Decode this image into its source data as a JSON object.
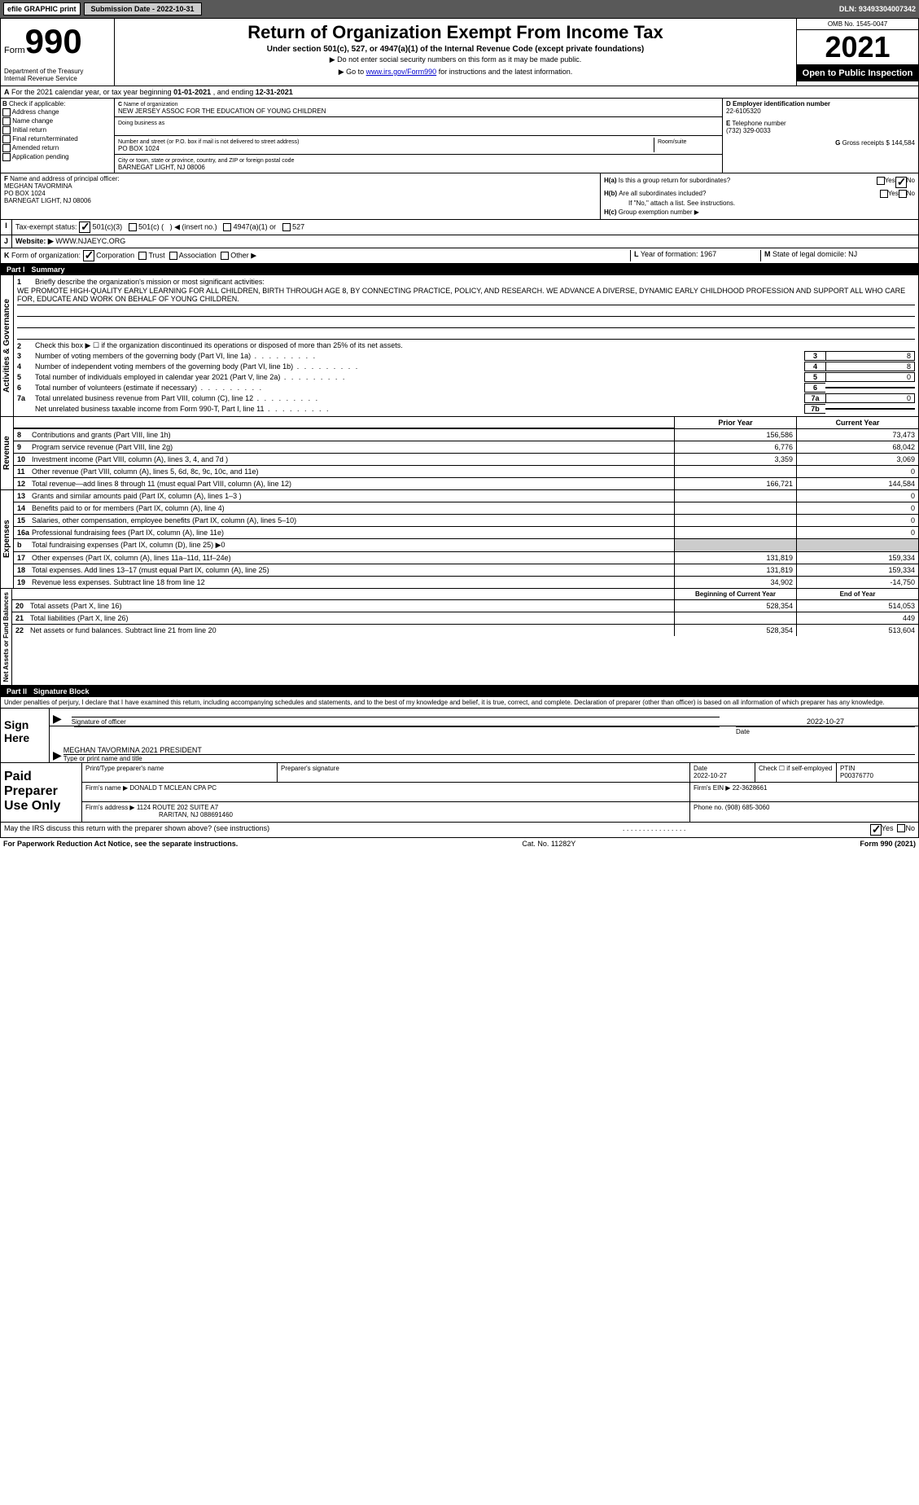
{
  "topbar": {
    "efile": "efile GRAPHIC print",
    "submission_btn": "Submission Date - 2022-10-31",
    "dln": "DLN: 93493304007342"
  },
  "header": {
    "form_word": "Form",
    "form_no": "990",
    "title": "Return of Organization Exempt From Income Tax",
    "sub1": "Under section 501(c), 527, or 4947(a)(1) of the Internal Revenue Code (except private foundations)",
    "sub2": "▶ Do not enter social security numbers on this form as it may be made public.",
    "sub3_pre": "▶ Go to ",
    "sub3_link": "www.irs.gov/Form990",
    "sub3_post": " for instructions and the latest information.",
    "dept": "Department of the Treasury",
    "irs": "Internal Revenue Service",
    "omb": "OMB No. 1545-0047",
    "year": "2021",
    "open": "Open to Public Inspection"
  },
  "A": {
    "text_pre": "For the 2021 calendar year, or tax year beginning ",
    "begin": "01-01-2021",
    "text_mid": " , and ending ",
    "end": "12-31-2021"
  },
  "B": {
    "label": "Check if applicable:",
    "opts": [
      "Address change",
      "Name change",
      "Initial return",
      "Final return/terminated",
      "Amended return",
      "Application pending"
    ]
  },
  "C": {
    "name_label": "Name of organization",
    "name": "NEW JERSEY ASSOC FOR THE EDUCATION OF YOUNG CHILDREN",
    "dba_label": "Doing business as",
    "addr_label": "Number and street (or P.O. box if mail is not delivered to street address)",
    "room_label": "Room/suite",
    "addr": "PO BOX 1024",
    "city_label": "City or town, state or province, country, and ZIP or foreign postal code",
    "city": "BARNEGAT LIGHT, NJ  08006"
  },
  "D": {
    "ein_label": "Employer identification number",
    "ein": "22-6105320",
    "tel_label": "Telephone number",
    "tel": "(732) 329-0033",
    "gross_label": "Gross receipts $",
    "gross": "144,584"
  },
  "F": {
    "label": "Name and address of principal officer:",
    "name": "MEGHAN TAVORMINA",
    "addr1": "PO BOX 1024",
    "addr2": "BARNEGAT LIGHT, NJ  08006"
  },
  "H": {
    "a": "Is this a group return for subordinates?",
    "b": "Are all subordinates included?",
    "bnote": "If \"No,\" attach a list. See instructions.",
    "c": "Group exemption number ▶",
    "yes": "Yes",
    "no": "No"
  },
  "I": {
    "label": "Tax-exempt status:",
    "o1": "501(c)(3)",
    "o2": "501(c) (",
    "o2b": ") ◀ (insert no.)",
    "o3": "4947(a)(1) or",
    "o4": "527"
  },
  "J": {
    "label": "Website: ▶",
    "val": "WWW.NJAEYC.ORG"
  },
  "K": {
    "label": "Form of organization:",
    "opts": [
      "Corporation",
      "Trust",
      "Association",
      "Other ▶"
    ]
  },
  "L": {
    "label": "Year of formation:",
    "val": "1967"
  },
  "M": {
    "label": "State of legal domicile:",
    "val": "NJ"
  },
  "part1": {
    "num": "Part I",
    "title": "Summary"
  },
  "gov": {
    "l1_label": "Briefly describe the organization's mission or most significant activities:",
    "l1_text": "WE PROMOTE HIGH-QUALITY EARLY LEARNING FOR ALL CHILDREN, BIRTH THROUGH AGE 8, BY CONNECTING PRACTICE, POLICY, AND RESEARCH. WE ADVANCE A DIVERSE, DYNAMIC EARLY CHILDHOOD PROFESSION AND SUPPORT ALL WHO CARE FOR, EDUCATE AND WORK ON BEHALF OF YOUNG CHILDREN.",
    "l2": "Check this box ▶ ☐ if the organization discontinued its operations or disposed of more than 25% of its net assets.",
    "rows": [
      {
        "n": "3",
        "t": "Number of voting members of the governing body (Part VI, line 1a)",
        "box": "3",
        "v": "8"
      },
      {
        "n": "4",
        "t": "Number of independent voting members of the governing body (Part VI, line 1b)",
        "box": "4",
        "v": "8"
      },
      {
        "n": "5",
        "t": "Total number of individuals employed in calendar year 2021 (Part V, line 2a)",
        "box": "5",
        "v": "0"
      },
      {
        "n": "6",
        "t": "Total number of volunteers (estimate if necessary)",
        "box": "6",
        "v": ""
      },
      {
        "n": "7a",
        "t": "Total unrelated business revenue from Part VIII, column (C), line 12",
        "box": "7a",
        "v": "0"
      },
      {
        "n": "",
        "t": "Net unrelated business taxable income from Form 990-T, Part I, line 11",
        "box": "7b",
        "v": ""
      }
    ]
  },
  "rev": {
    "prior": "Prior Year",
    "current": "Current Year",
    "section_rev": "Revenue",
    "section_exp": "Expenses",
    "section_net": "Net Assets or Fund Balances",
    "rows": [
      {
        "n": "8",
        "t": "Contributions and grants (Part VIII, line 1h)",
        "c1": "156,586",
        "c2": "73,473"
      },
      {
        "n": "9",
        "t": "Program service revenue (Part VIII, line 2g)",
        "c1": "6,776",
        "c2": "68,042"
      },
      {
        "n": "10",
        "t": "Investment income (Part VIII, column (A), lines 3, 4, and 7d )",
        "c1": "3,359",
        "c2": "3,069"
      },
      {
        "n": "11",
        "t": "Other revenue (Part VIII, column (A), lines 5, 6d, 8c, 9c, 10c, and 11e)",
        "c1": "",
        "c2": "0"
      },
      {
        "n": "12",
        "t": "Total revenue—add lines 8 through 11 (must equal Part VIII, column (A), line 12)",
        "c1": "166,721",
        "c2": "144,584"
      }
    ],
    "exp_rows": [
      {
        "n": "13",
        "t": "Grants and similar amounts paid (Part IX, column (A), lines 1–3 )",
        "c1": "",
        "c2": "0"
      },
      {
        "n": "14",
        "t": "Benefits paid to or for members (Part IX, column (A), line 4)",
        "c1": "",
        "c2": "0"
      },
      {
        "n": "15",
        "t": "Salaries, other compensation, employee benefits (Part IX, column (A), lines 5–10)",
        "c1": "",
        "c2": "0"
      },
      {
        "n": "16a",
        "t": "Professional fundraising fees (Part IX, column (A), line 11e)",
        "c1": "",
        "c2": "0"
      },
      {
        "n": "b",
        "t": "Total fundraising expenses (Part IX, column (D), line 25) ▶0",
        "c1": "gray",
        "c2": "gray"
      },
      {
        "n": "17",
        "t": "Other expenses (Part IX, column (A), lines 11a–11d, 11f–24e)",
        "c1": "131,819",
        "c2": "159,334"
      },
      {
        "n": "18",
        "t": "Total expenses. Add lines 13–17 (must equal Part IX, column (A), line 25)",
        "c1": "131,819",
        "c2": "159,334"
      },
      {
        "n": "19",
        "t": "Revenue less expenses. Subtract line 18 from line 12",
        "c1": "34,902",
        "c2": "-14,750"
      }
    ],
    "net_head": {
      "c1": "Beginning of Current Year",
      "c2": "End of Year"
    },
    "net_rows": [
      {
        "n": "20",
        "t": "Total assets (Part X, line 16)",
        "c1": "528,354",
        "c2": "514,053"
      },
      {
        "n": "21",
        "t": "Total liabilities (Part X, line 26)",
        "c1": "",
        "c2": "449"
      },
      {
        "n": "22",
        "t": "Net assets or fund balances. Subtract line 21 from line 20",
        "c1": "528,354",
        "c2": "513,604"
      }
    ]
  },
  "part2": {
    "num": "Part II",
    "title": "Signature Block"
  },
  "sig": {
    "intro": "Under penalties of perjury, I declare that I have examined this return, including accompanying schedules and statements, and to the best of my knowledge and belief, it is true, correct, and complete. Declaration of preparer (other than officer) is based on all information of which preparer has any knowledge.",
    "sign_here": "Sign Here",
    "sig_officer": "Signature of officer",
    "date_label": "Date",
    "date_val": "2022-10-27",
    "officer_name": "MEGHAN TAVORMINA 2021 PRESIDENT",
    "type_label": "Type or print name and title"
  },
  "paid": {
    "label": "Paid Preparer Use Only",
    "h_name": "Print/Type preparer's name",
    "h_sig": "Preparer's signature",
    "h_date": "Date",
    "date": "2022-10-27",
    "h_check": "Check ☐ if self-employed",
    "h_ptin": "PTIN",
    "ptin": "P00376770",
    "firm_label": "Firm's name    ▶",
    "firm": "DONALD T MCLEAN CPA PC",
    "ein_label": "Firm's EIN ▶",
    "ein": "22-3628661",
    "addr_label": "Firm's address ▶",
    "addr1": "1124 ROUTE 202 SUITE A7",
    "addr2": "RARITAN, NJ  088691460",
    "phone_label": "Phone no.",
    "phone": "(908) 685-3060"
  },
  "discuss": {
    "q": "May the IRS discuss this return with the preparer shown above? (see instructions)",
    "yes": "Yes",
    "no": "No"
  },
  "footer": {
    "left": "For Paperwork Reduction Act Notice, see the separate instructions.",
    "mid": "Cat. No. 11282Y",
    "right": "Form 990 (2021)"
  }
}
